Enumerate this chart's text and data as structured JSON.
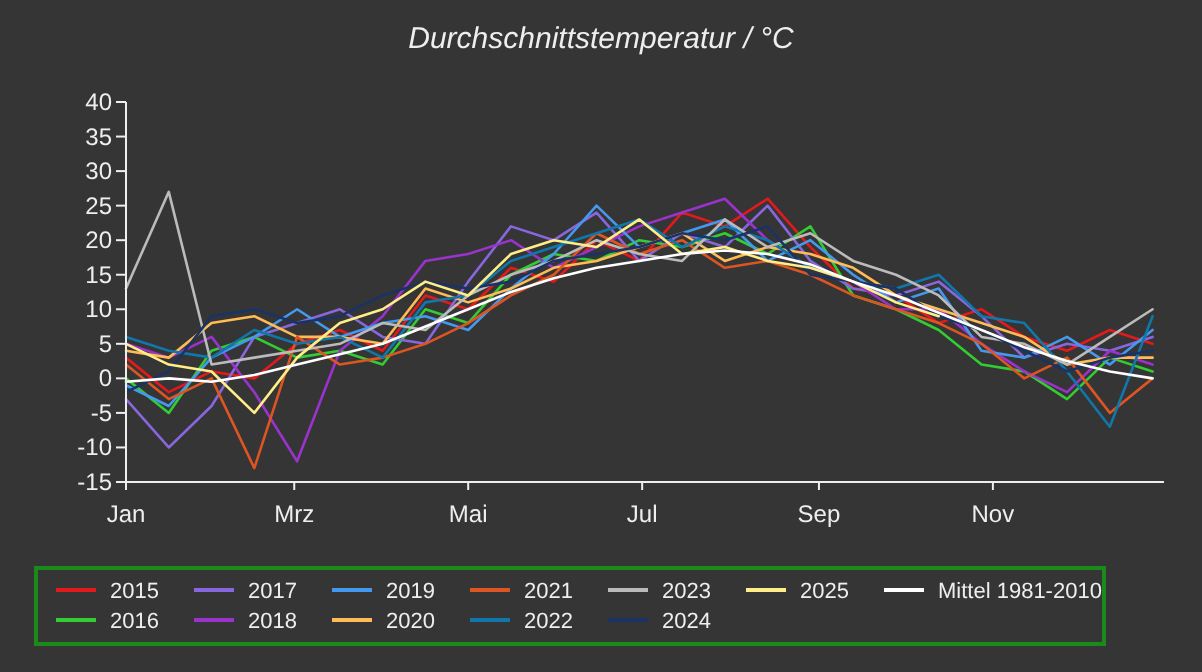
{
  "chart_data": {
    "type": "line",
    "title": "Durchschnittstemperatur / °C",
    "x": [
      "--01-01",
      "--01-16",
      "--01-31",
      "--02-15",
      "--03-02",
      "--03-17",
      "--04-01",
      "--04-16",
      "--05-01",
      "--05-16",
      "--05-31",
      "--06-15",
      "--06-30",
      "--07-15",
      "--07-30",
      "--08-14",
      "--08-29",
      "--09-13",
      "--09-28",
      "--10-13",
      "--10-28",
      "--11-12",
      "--11-27",
      "--12-12",
      "--12-27"
    ],
    "xlim": [
      "--01-01",
      "--12-31"
    ],
    "xticks": [
      {
        "value": "--01-01",
        "label": "Jan"
      },
      {
        "value": "--03-01",
        "label": "Mrz"
      },
      {
        "value": "--05-01",
        "label": "Mai"
      },
      {
        "value": "--07-01",
        "label": "Jul"
      },
      {
        "value": "--09-01",
        "label": "Sep"
      },
      {
        "value": "--11-01",
        "label": "Nov"
      }
    ],
    "ylim": [
      -15,
      40
    ],
    "yticks": [
      -15,
      -10,
      -5,
      0,
      5,
      10,
      15,
      20,
      25,
      30,
      35,
      40
    ],
    "grid": false,
    "legend": "bottom",
    "marker": "none",
    "line_style": "solid",
    "series": [
      {
        "name": "2015",
        "color": "#e31a1c",
        "values": [
          3,
          -2,
          1,
          0,
          5,
          7,
          4,
          12,
          10,
          16,
          14,
          20,
          17,
          24,
          22,
          26,
          19,
          13,
          12,
          8,
          10,
          6,
          4,
          7,
          5
        ]
      },
      {
        "name": "2016",
        "color": "#33cc33",
        "values": [
          0,
          -5,
          4,
          6,
          3,
          4,
          2,
          10,
          8,
          15,
          18,
          17,
          20,
          19,
          21,
          18,
          22,
          12,
          10,
          7,
          2,
          1,
          -3,
          3,
          1
        ]
      },
      {
        "name": "2017",
        "color": "#8866dd",
        "values": [
          -3,
          -10,
          -4,
          6,
          8,
          10,
          6,
          5,
          14,
          22,
          20,
          24,
          17,
          21,
          19,
          25,
          17,
          13,
          12,
          14,
          9,
          3,
          5,
          4,
          6
        ]
      },
      {
        "name": "2018",
        "color": "#9933cc",
        "values": [
          5,
          3,
          6,
          -2,
          -12,
          4,
          9,
          17,
          18,
          20,
          16,
          19,
          22,
          24,
          26,
          20,
          16,
          14,
          10,
          10,
          5,
          1,
          -2,
          4,
          2
        ]
      },
      {
        "name": "2019",
        "color": "#4499ee",
        "values": [
          -1,
          -4,
          3,
          6,
          10,
          6,
          8,
          9,
          7,
          13,
          18,
          25,
          19,
          21,
          23,
          17,
          20,
          15,
          11,
          13,
          4,
          3,
          6,
          2,
          7
        ]
      },
      {
        "name": "2020",
        "color": "#ffbb55",
        "values": [
          4,
          3,
          8,
          9,
          6,
          6,
          5,
          13,
          11,
          13,
          16,
          17,
          19,
          21,
          17,
          19,
          18,
          16,
          12,
          10,
          8,
          6,
          2,
          3,
          3
        ]
      },
      {
        "name": "2021",
        "color": "#dd5522",
        "values": [
          2,
          -3,
          0,
          -13,
          6,
          2,
          3,
          5,
          8,
          12,
          15,
          21,
          18,
          20,
          16,
          17,
          15,
          12,
          10,
          8,
          5,
          0,
          3,
          -5,
          0
        ]
      },
      {
        "name": "2022",
        "color": "#1177aa",
        "values": [
          6,
          4,
          3,
          7,
          5,
          6,
          3,
          11,
          12,
          17,
          19,
          21,
          23,
          19,
          22,
          20,
          16,
          14,
          13,
          15,
          9,
          8,
          1,
          -7,
          9
        ]
      },
      {
        "name": "2023",
        "color": "#bbbbbb",
        "values": [
          13,
          27,
          2,
          3,
          4,
          5,
          8,
          7,
          12,
          15,
          17,
          20,
          18,
          17,
          23,
          19,
          21,
          17,
          15,
          12,
          6,
          5,
          2,
          6,
          10
        ]
      },
      {
        "name": "2024",
        "color": "#1a3366",
        "values": [
          -2,
          1,
          9,
          10,
          8,
          9,
          12,
          14,
          13,
          14,
          17,
          18,
          19,
          21,
          20,
          22,
          15,
          14,
          13,
          9,
          7,
          4,
          1,
          3,
          4
        ]
      },
      {
        "name": "2025",
        "color": "#ffee88",
        "values": [
          5,
          2,
          1,
          -5,
          3,
          8,
          10,
          14,
          12,
          18,
          20,
          19,
          23,
          18,
          19,
          17,
          16,
          14,
          11,
          9,
          null,
          null,
          null,
          null,
          null
        ]
      },
      {
        "name": "Mittel 1981-2010",
        "color": "#ffffff",
        "values": [
          -0.5,
          0,
          -0.5,
          0.5,
          2,
          3.5,
          5,
          7.5,
          10,
          12.5,
          14.5,
          16,
          17,
          18,
          18.5,
          18,
          16.5,
          14,
          12,
          9.5,
          7,
          4.5,
          2.5,
          1,
          0
        ]
      }
    ]
  }
}
